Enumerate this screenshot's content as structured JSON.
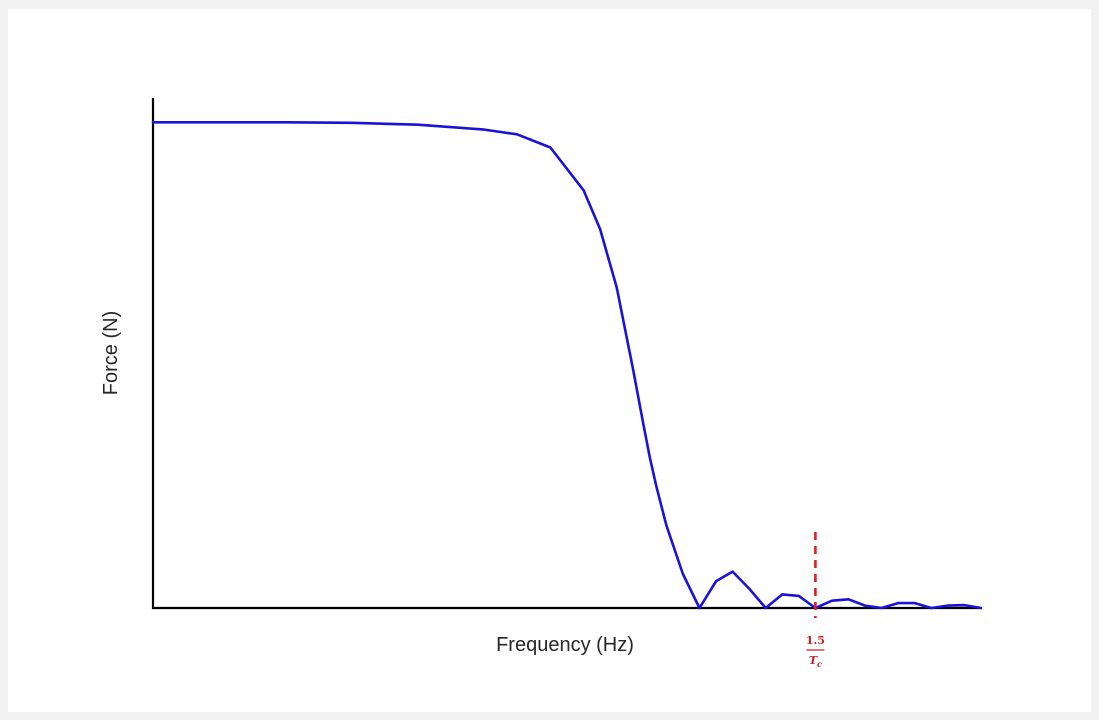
{
  "chart_data": {
    "type": "line",
    "title": "",
    "xlabel": "Frequency (Hz)",
    "ylabel": "Force (N)",
    "x_ticks_shown": false,
    "y_ticks_shown": false,
    "grid": false,
    "legend": "none",
    "xlim": [
      0,
      2.5
    ],
    "ylim": [
      0,
      1.05
    ],
    "series": [
      {
        "color": "#1a12d6",
        "x": [
          0,
          0.2,
          0.4,
          0.6,
          0.8,
          1.0,
          1.1,
          1.2,
          1.3,
          1.35,
          1.4,
          1.45,
          1.48,
          1.5,
          1.52,
          1.55,
          1.6,
          1.65,
          1.7,
          1.75,
          1.8,
          1.85,
          1.9,
          1.95,
          2.0,
          2.05,
          2.1,
          2.15,
          2.2,
          2.25,
          2.3,
          2.35,
          2.4,
          2.45,
          2.5
        ],
        "y": [
          1.0,
          1.0,
          1.0,
          0.999,
          0.995,
          0.985,
          0.975,
          0.948,
          0.86,
          0.78,
          0.66,
          0.49,
          0.38,
          0.31,
          0.25,
          0.17,
          0.07,
          0.0,
          0.055,
          0.075,
          0.04,
          0.0,
          0.028,
          0.025,
          0.0,
          0.015,
          0.018,
          0.005,
          0.0,
          0.01,
          0.01,
          0.0,
          0.005,
          0.006,
          0.0
        ]
      }
    ],
    "annotations": [
      {
        "type": "vertical-dashed-line",
        "x": 2.0,
        "color": "#e0201e",
        "label_numerator": "1.5",
        "label_denominator": "T",
        "label_subscript": "c"
      }
    ]
  }
}
